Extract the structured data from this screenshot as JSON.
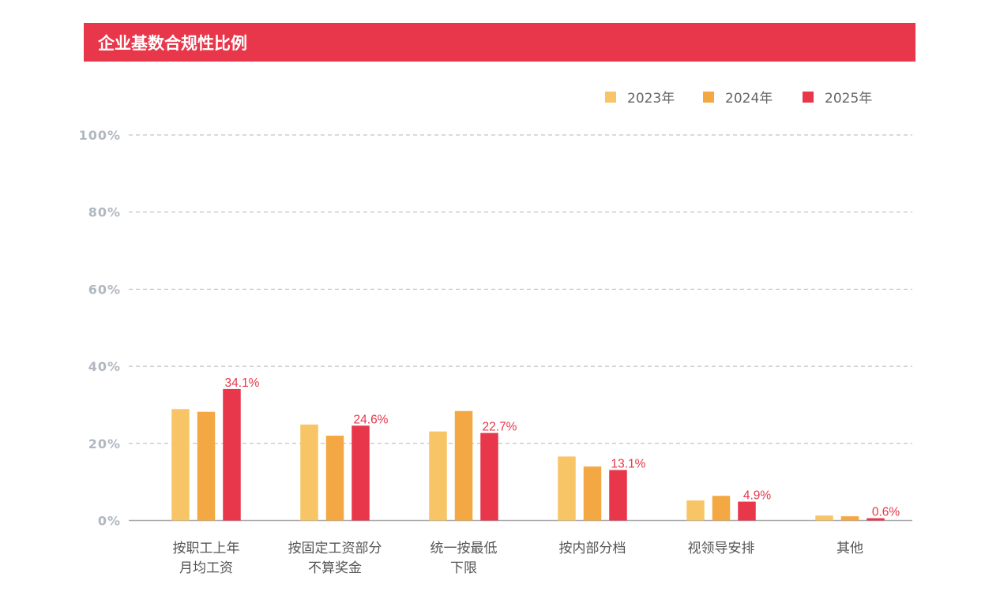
{
  "header": {
    "title": "企业基数合规性比例"
  },
  "colors": {
    "title_bar": "#e8364a",
    "2023年": "#f7c566",
    "2024年": "#f4a843",
    "2025年": "#e8364a"
  },
  "chart_data": {
    "type": "bar",
    "title": "企业基数合规性比例",
    "categories": [
      [
        "按职工上年",
        "月均工资"
      ],
      [
        "按固定工资部分",
        "不算奖金"
      ],
      [
        "统一按最低",
        "下限"
      ],
      [
        "按内部分档"
      ],
      [
        "视领导安排"
      ],
      [
        "其他"
      ]
    ],
    "series": [
      {
        "name": "2023年",
        "values": [
          28.9,
          24.9,
          23.1,
          16.6,
          5.2,
          1.3
        ]
      },
      {
        "name": "2024年",
        "values": [
          28.2,
          22.0,
          28.4,
          14.0,
          6.4,
          1.1
        ]
      },
      {
        "name": "2025年",
        "values": [
          34.1,
          24.6,
          22.7,
          13.1,
          4.9,
          0.6
        ]
      }
    ],
    "data_labels": [
      "34.1%",
      "24.6%",
      "22.7%",
      "13.1%",
      "4.9%",
      "0.6%"
    ],
    "yticks": [
      "0%",
      "20%",
      "40%",
      "60%",
      "80%",
      "100%"
    ],
    "ylim": [
      0,
      100
    ],
    "grid": true,
    "legend": "top-right"
  }
}
